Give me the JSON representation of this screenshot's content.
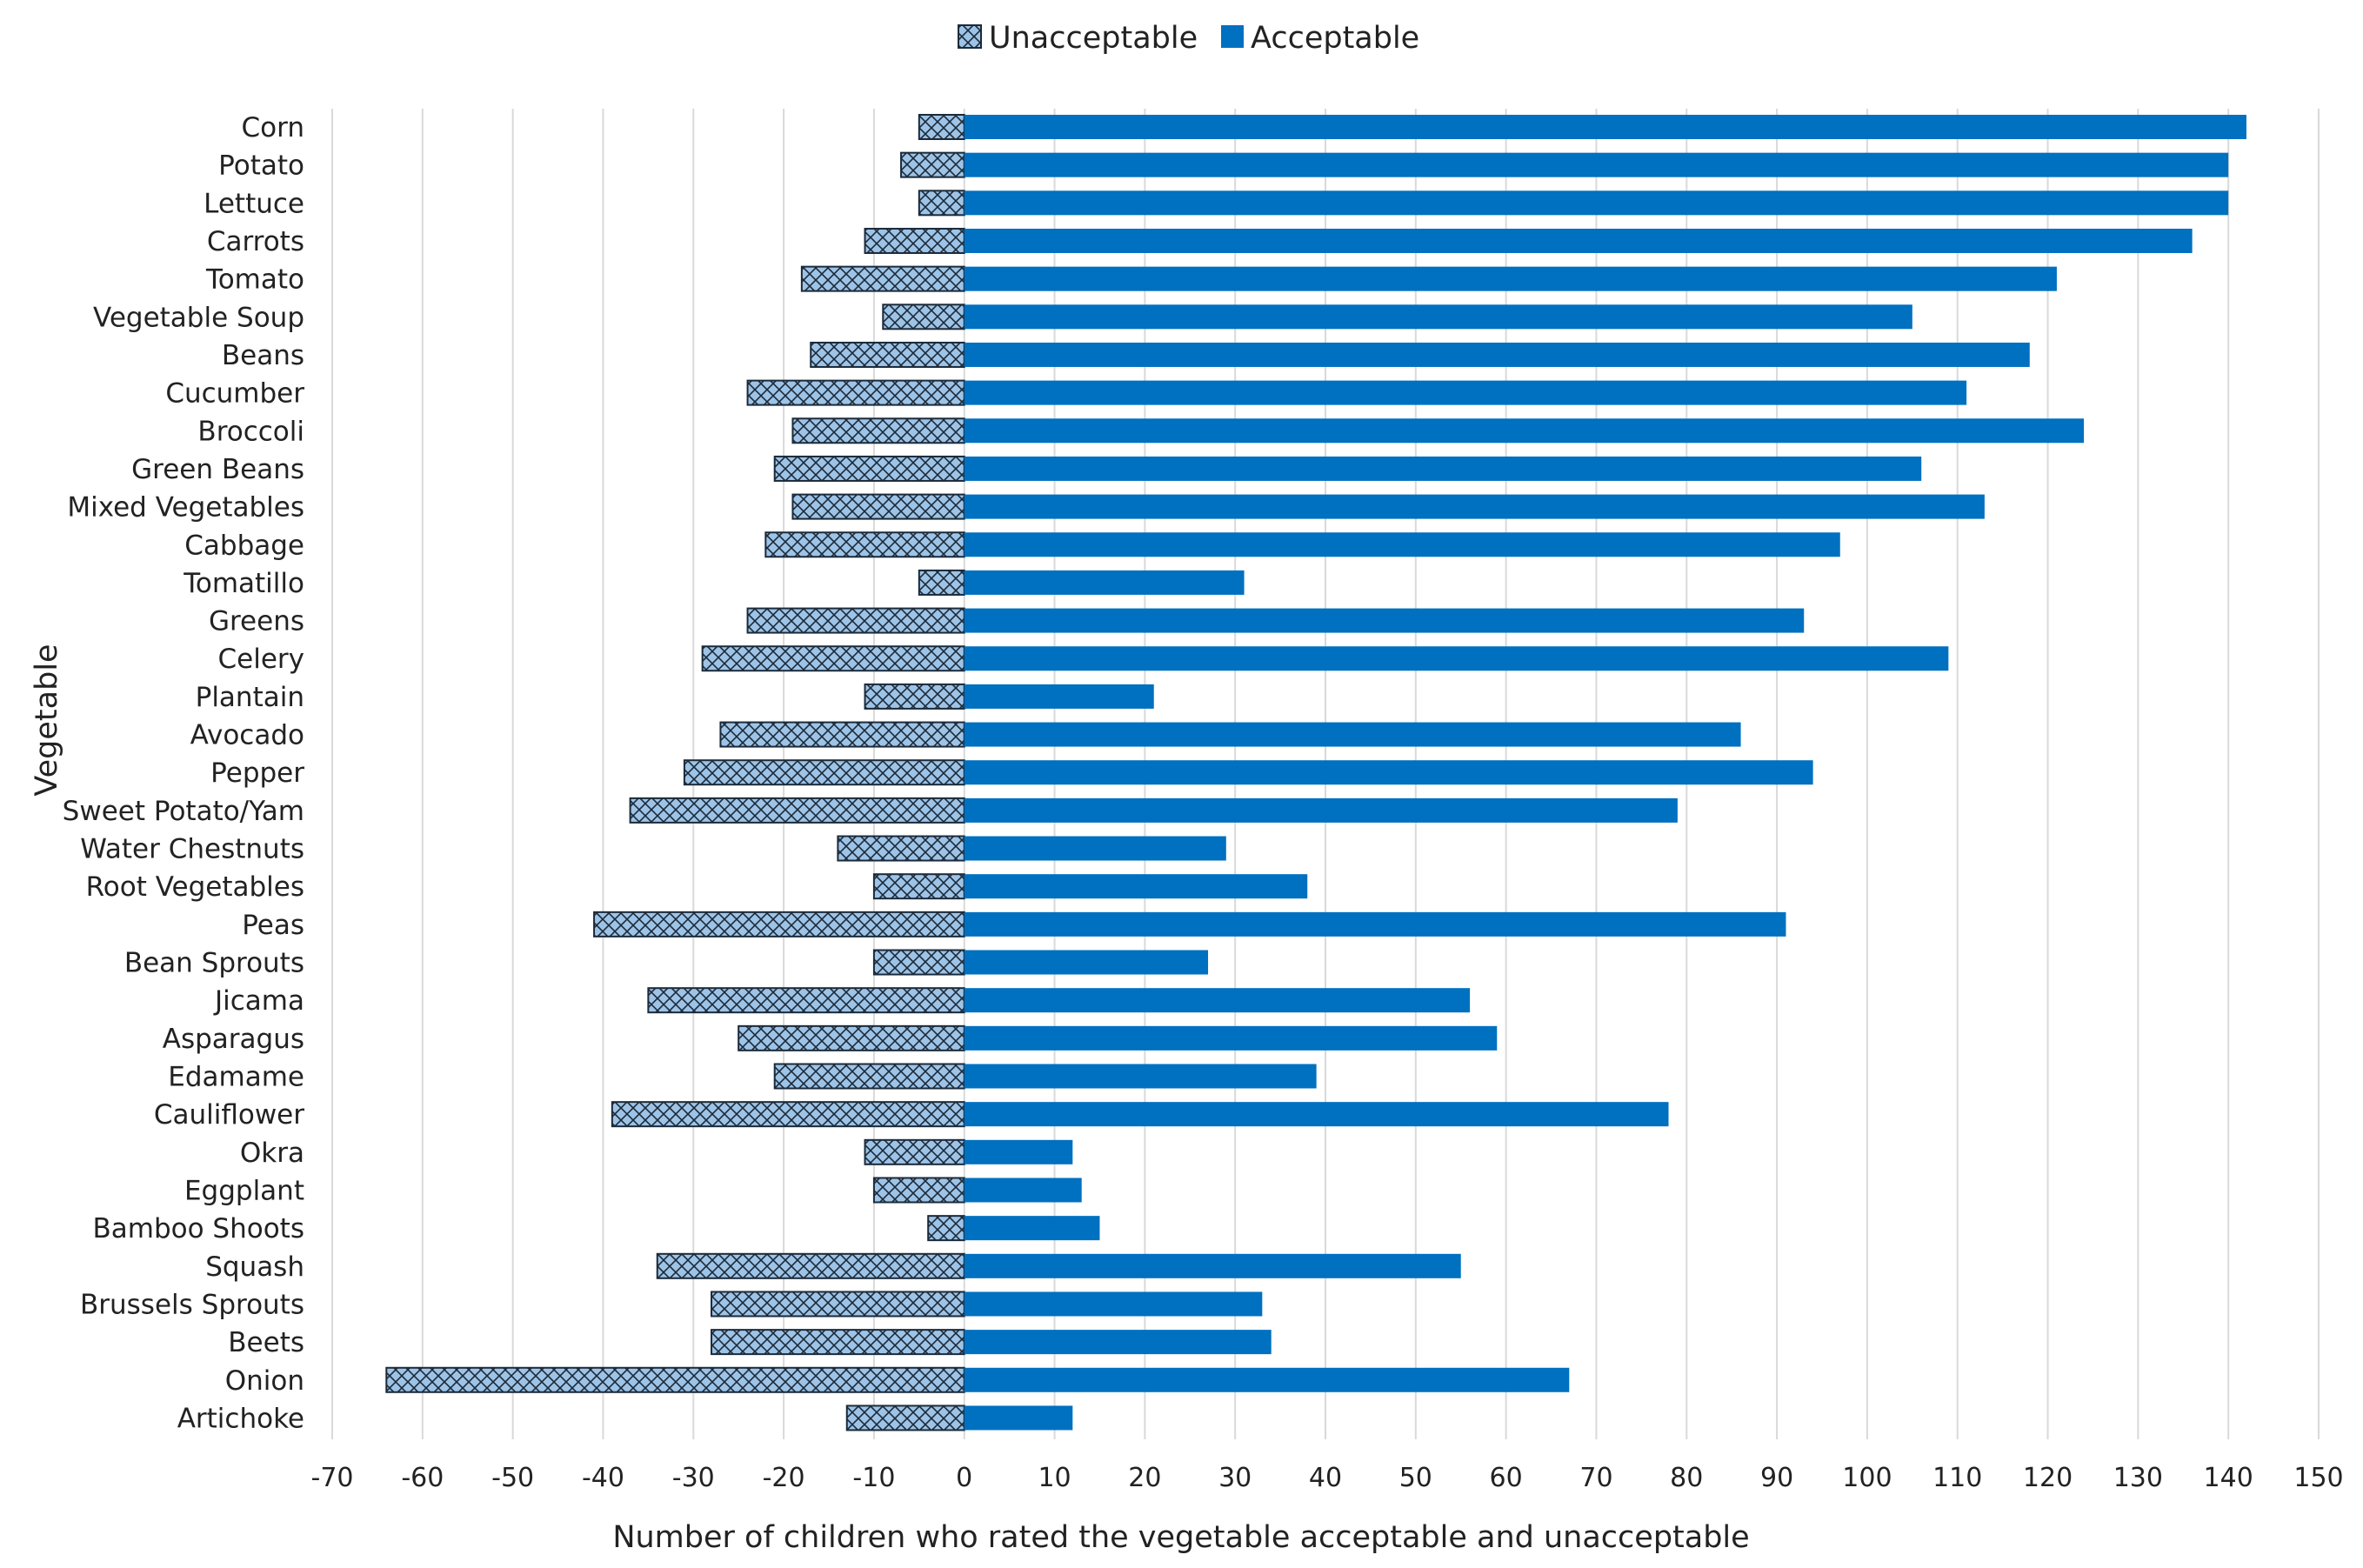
{
  "chart_data": {
    "type": "bar",
    "orientation": "horizontal",
    "stacked": "diverging",
    "xlabel": "Number of children who rated the vegetable acceptable and unacceptable",
    "ylabel": "Vegetable",
    "xlim": [
      -70,
      150
    ],
    "xticks": [
      -70,
      -60,
      -50,
      -40,
      -30,
      -20,
      -10,
      0,
      10,
      20,
      30,
      40,
      50,
      60,
      70,
      80,
      90,
      100,
      110,
      120,
      130,
      140,
      150
    ],
    "grid": "vertical",
    "legend": "top-center",
    "categories": [
      "Corn",
      "Potato",
      "Lettuce",
      "Carrots",
      "Tomato",
      "Vegetable Soup",
      "Beans",
      "Cucumber",
      "Broccoli",
      "Green Beans",
      "Mixed Vegetables",
      "Cabbage",
      "Tomatillo",
      "Greens",
      "Celery",
      "Plantain",
      "Avocado",
      "Pepper",
      "Sweet Potato/Yam",
      "Water Chestnuts",
      "Root Vegetables",
      "Peas",
      "Bean Sprouts",
      "Jicama",
      "Asparagus",
      "Edamame",
      "Cauliflower",
      "Okra",
      "Eggplant",
      "Bamboo Shoots",
      "Squash",
      "Brussels Sprouts",
      "Beets",
      "Onion",
      "Artichoke"
    ],
    "series": [
      {
        "name": "Unacceptable",
        "color": "#9dc3e6",
        "pattern": "crosshatch",
        "values": [
          -5,
          -7,
          -5,
          -11,
          -18,
          -9,
          -17,
          -24,
          -19,
          -21,
          -19,
          -22,
          -5,
          -24,
          -29,
          -11,
          -27,
          -31,
          -37,
          -14,
          -10,
          -41,
          -10,
          -35,
          -25,
          -21,
          -39,
          -11,
          -10,
          -4,
          -34,
          -28,
          -28,
          -64,
          -13
        ]
      },
      {
        "name": "Acceptable",
        "color": "#0070c0",
        "pattern": "solid",
        "values": [
          142,
          140,
          140,
          136,
          121,
          105,
          118,
          111,
          124,
          106,
          113,
          97,
          31,
          93,
          109,
          21,
          86,
          94,
          79,
          29,
          38,
          91,
          27,
          56,
          59,
          39,
          78,
          12,
          13,
          15,
          55,
          33,
          34,
          67,
          12
        ]
      }
    ]
  }
}
